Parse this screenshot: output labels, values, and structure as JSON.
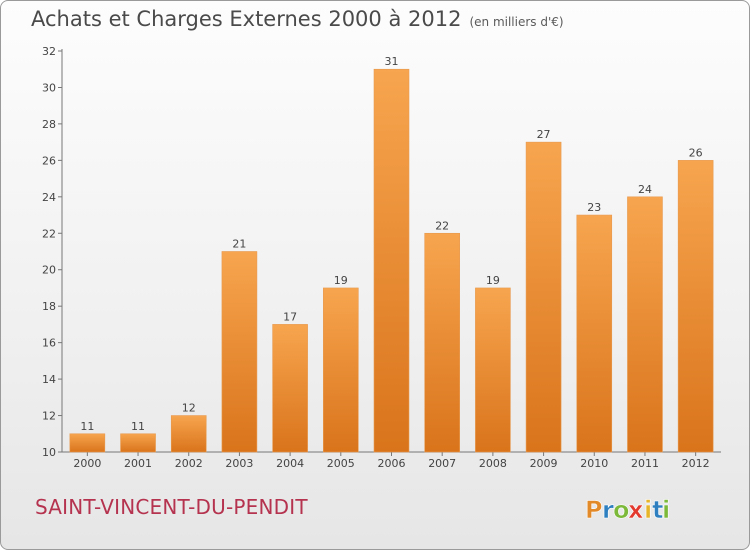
{
  "header": {
    "title": "Achats et Charges Externes 2000 à 2012",
    "unit": "(en milliers d'€)"
  },
  "commune": "SAINT-VINCENT-DU-PENDIT",
  "logo": {
    "text": "Proxiti",
    "letters": [
      "P",
      "r",
      "o",
      "x",
      "i",
      "t",
      "i"
    ]
  },
  "colors": {
    "bar_top": "#f7a54f",
    "bar_bottom": "#d9741b",
    "commune": "#b5334f",
    "logo_letters": [
      "#e28a2a",
      "#2e7fbf",
      "#7cb93a",
      "#e2382d",
      "#e7b52a",
      "#2e7fbf",
      "#7cb93a"
    ]
  },
  "chart_data": {
    "type": "bar",
    "categories": [
      "2000",
      "2001",
      "2002",
      "2003",
      "2004",
      "2005",
      "2006",
      "2007",
      "2008",
      "2009",
      "2010",
      "2011",
      "2012"
    ],
    "values": [
      11,
      11,
      12,
      21,
      17,
      19,
      31,
      22,
      19,
      27,
      23,
      24,
      26
    ],
    "ylim": [
      10,
      32
    ],
    "yticks": [
      10,
      12,
      14,
      16,
      18,
      20,
      22,
      24,
      26,
      28,
      30,
      32
    ],
    "grid": false,
    "legend": "none"
  }
}
